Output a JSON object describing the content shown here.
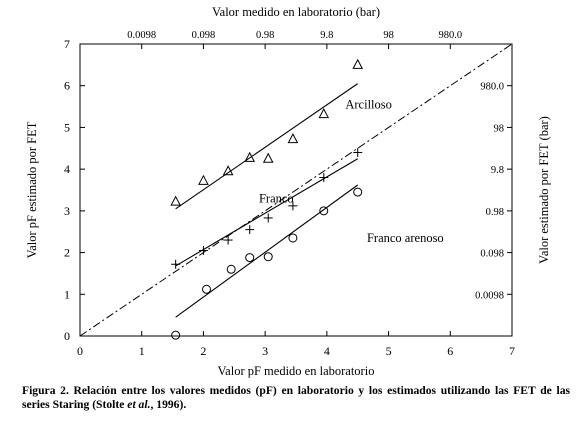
{
  "chart_data": {
    "type": "scatter",
    "title": "",
    "xlabel": "Valor pF medido en laboratorio",
    "ylabel": "Valor pF estimado por FET",
    "top_label": "Valor medido en laboratorio (bar)",
    "right_label": "Valor estimado por FET (bar)",
    "xlim": [
      0,
      7
    ],
    "ylim": [
      0,
      7
    ],
    "x_ticks": [
      0,
      1,
      2,
      3,
      4,
      5,
      6,
      7
    ],
    "y_ticks": [
      0,
      1,
      2,
      3,
      4,
      5,
      6,
      7
    ],
    "top_ticks": [
      {
        "at": 1.0,
        "label": "0.0098"
      },
      {
        "at": 2.0,
        "label": "0.098"
      },
      {
        "at": 3.0,
        "label": "0.98"
      },
      {
        "at": 4.0,
        "label": "9.8"
      },
      {
        "at": 5.0,
        "label": "98"
      },
      {
        "at": 6.0,
        "label": "980.0"
      }
    ],
    "right_ticks": [
      {
        "at": 1.0,
        "label": "0.0098"
      },
      {
        "at": 2.0,
        "label": "0.098"
      },
      {
        "at": 3.0,
        "label": "0.98"
      },
      {
        "at": 4.0,
        "label": "9.8"
      },
      {
        "at": 5.0,
        "label": "98"
      },
      {
        "at": 6.0,
        "label": "980.0"
      }
    ],
    "series": [
      {
        "name": "Arcilloso",
        "marker": "triangle",
        "points": [
          [
            1.55,
            3.22
          ],
          [
            2.0,
            3.72
          ],
          [
            2.4,
            3.95
          ],
          [
            2.75,
            4.27
          ],
          [
            3.05,
            4.25
          ],
          [
            3.45,
            4.72
          ],
          [
            3.95,
            5.32
          ],
          [
            4.5,
            6.5
          ]
        ],
        "fit": [
          [
            1.55,
            3.05
          ],
          [
            4.5,
            6.05
          ]
        ],
        "label_at": [
          4.3,
          5.55
        ]
      },
      {
        "name": "Franco",
        "marker": "plus",
        "points": [
          [
            1.55,
            1.72
          ],
          [
            2.0,
            2.05
          ],
          [
            2.4,
            2.3
          ],
          [
            2.75,
            2.55
          ],
          [
            3.05,
            2.83
          ],
          [
            3.45,
            3.12
          ],
          [
            3.95,
            3.8
          ],
          [
            4.5,
            4.4
          ]
        ],
        "fit": [
          [
            1.55,
            1.68
          ],
          [
            4.5,
            4.25
          ]
        ],
        "label_at": [
          2.9,
          3.3
        ]
      },
      {
        "name": "Franco arenoso",
        "marker": "circle",
        "points": [
          [
            1.55,
            0.02
          ],
          [
            2.05,
            1.12
          ],
          [
            2.45,
            1.6
          ],
          [
            2.75,
            1.88
          ],
          [
            3.05,
            1.9
          ],
          [
            3.45,
            2.35
          ],
          [
            3.95,
            3.0
          ],
          [
            4.5,
            3.45
          ]
        ],
        "fit": [
          [
            1.55,
            0.45
          ],
          [
            4.5,
            3.62
          ]
        ],
        "label_at": [
          4.65,
          2.35
        ]
      }
    ],
    "reference_line": {
      "style": "dash-dot",
      "from": [
        0,
        0
      ],
      "to": [
        7,
        7
      ]
    },
    "grid": false,
    "legend": "none"
  },
  "caption": {
    "prefix": "Figura 2. Relación entre los valores medidos (pF) en laboratorio y los estimados utilizando las FET de las series Staring (Stolte ",
    "italic": "et al.",
    "suffix": ", 1996)."
  }
}
